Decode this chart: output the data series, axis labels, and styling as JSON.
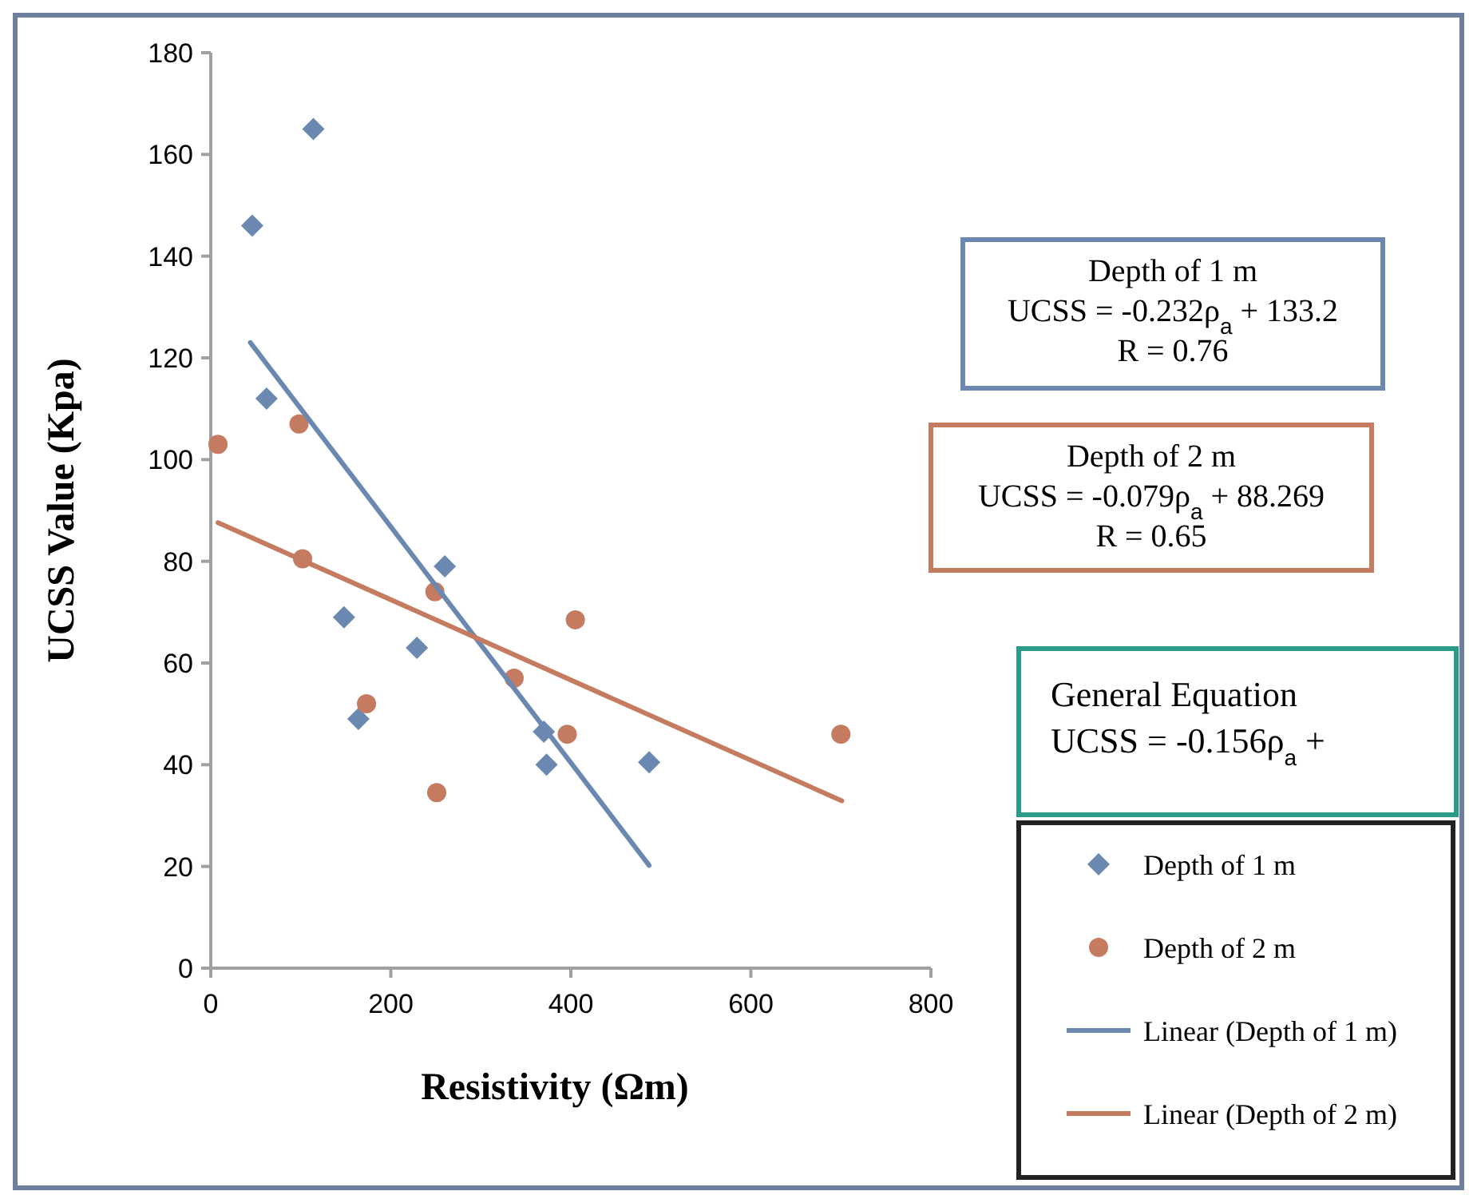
{
  "chart_data": {
    "type": "scatter",
    "xlabel": "Resistivity (Ωm)",
    "ylabel": "UCSS Value (Kpa)",
    "xlim": [
      0,
      800
    ],
    "xticks": [
      0,
      200,
      400,
      600,
      800
    ],
    "ylim": [
      0,
      180
    ],
    "yticks": [
      0,
      20,
      40,
      60,
      80,
      100,
      120,
      140,
      160,
      180
    ],
    "grid": false,
    "legend": "right",
    "series": [
      {
        "name": "Depth of 1 m",
        "marker": "diamond",
        "color": "#6a88b0",
        "x": [
          46,
          114,
          62,
          260,
          148,
          229,
          164,
          370,
          373,
          487
        ],
        "values": [
          146,
          165,
          112,
          79,
          69,
          63,
          49,
          46.5,
          40,
          40.5
        ]
      },
      {
        "name": "Depth of 2 m",
        "marker": "circle",
        "color": "#c47b5f",
        "x": [
          8,
          98,
          102,
          249,
          405,
          337,
          173,
          396,
          251,
          700
        ],
        "values": [
          103,
          107,
          80.5,
          74,
          68.5,
          57,
          52,
          46,
          34.5,
          46
        ]
      },
      {
        "name": "Linear (Depth of 1 m)",
        "type": "line",
        "marker": "none",
        "color": "#6a88b0",
        "x": [
          44,
          487
        ],
        "values": [
          123,
          20.2
        ]
      },
      {
        "name": "Linear (Depth of 2 m)",
        "type": "line",
        "marker": "none",
        "color": "#c47b5f",
        "x": [
          8,
          701
        ],
        "values": [
          87.6,
          32.9
        ]
      }
    ],
    "annotations": [
      "Depth of 1 m\nUCSS = -0.232ρ$_{a}$ + 133.2\nR = 0.76",
      "Depth of 2 m\nUCSS = -0.079ρ$_{a}$ + 88.269\nR = 0.65",
      "General Equation\nUCSS = -0.156ρ$_{a}$ +"
    ]
  }
}
